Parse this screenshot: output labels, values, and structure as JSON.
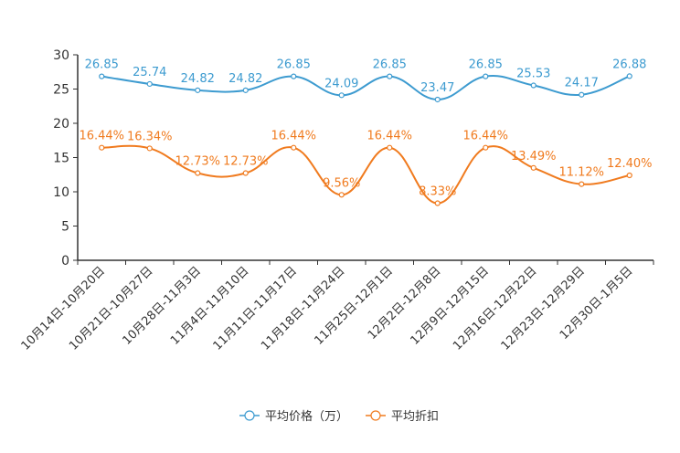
{
  "chart_data": {
    "type": "line",
    "title": "",
    "xlabel": "",
    "ylabel": "",
    "ylim": [
      0,
      30
    ],
    "yticks": [
      0,
      5,
      10,
      15,
      20,
      25,
      30
    ],
    "grid": false,
    "legend_position": "bottom-center",
    "categories": [
      "10月14日-10月20日",
      "10月21日-10月27日",
      "10月28日-11月3日",
      "11月4日-11月10日",
      "11月11日-11月17日",
      "11月18日-11月24日",
      "11月25日-12月1日",
      "12月2日-12月8日",
      "12月9日-12月15日",
      "12月16日-12月22日",
      "12月23日-12月29日",
      "12月30日-1月5日"
    ],
    "series": [
      {
        "name": "平均价格（万）",
        "color": "#3d9bd0",
        "values": [
          26.85,
          25.74,
          24.82,
          24.82,
          26.85,
          24.09,
          26.85,
          23.47,
          26.85,
          25.53,
          24.17,
          26.88
        ],
        "labels": [
          "26.85",
          "25.74",
          "24.82",
          "24.82",
          "26.85",
          "24.09",
          "26.85",
          "23.47",
          "26.85",
          "25.53",
          "24.17",
          "26.88"
        ]
      },
      {
        "name": "平均折扣",
        "color": "#f07b1f",
        "values": [
          16.44,
          16.34,
          12.73,
          12.73,
          16.44,
          9.56,
          16.44,
          8.33,
          16.44,
          13.49,
          11.12,
          12.4
        ],
        "labels": [
          "16.44%",
          "16.34%",
          "12.73%",
          "12.73%",
          "16.44%",
          "9.56%",
          "16.44%",
          "8.33%",
          "16.44%",
          "13.49%",
          "11.12%",
          "12.40%"
        ]
      }
    ]
  }
}
